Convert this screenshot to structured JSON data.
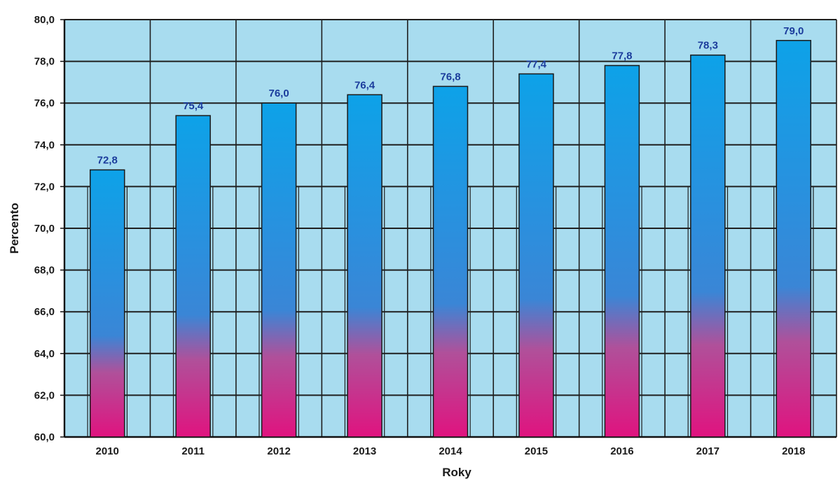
{
  "chart_data": {
    "type": "bar",
    "categories": [
      "2010",
      "2011",
      "2012",
      "2013",
      "2014",
      "2015",
      "2016",
      "2017",
      "2018"
    ],
    "values": [
      72.8,
      75.4,
      76.0,
      76.4,
      76.8,
      77.4,
      77.8,
      78.3,
      79.0
    ],
    "data_labels": [
      "72,8",
      "75,4",
      "76,0",
      "76,4",
      "76,8",
      "77,4",
      "77,8",
      "78,3",
      "79,0"
    ],
    "xlabel": "Roky",
    "ylabel": "Percento",
    "ylim": [
      60,
      80
    ],
    "yticks": [
      60,
      62,
      64,
      66,
      68,
      70,
      72,
      74,
      76,
      78,
      80
    ],
    "ytick_labels": [
      "60,0",
      "62,0",
      "64,0",
      "66,0",
      "68,0",
      "70,0",
      "72,0",
      "74,0",
      "76,0",
      "78,0",
      "80,0"
    ],
    "grid": true,
    "colors": {
      "plot_background": "#a8dcef",
      "grid_line": "#1f1f1f",
      "bar_top": "#0da2e8",
      "bar_mid": "#3a86d6",
      "bar_bottom": "#e0137f",
      "data_label": "#1b3c9c"
    }
  }
}
